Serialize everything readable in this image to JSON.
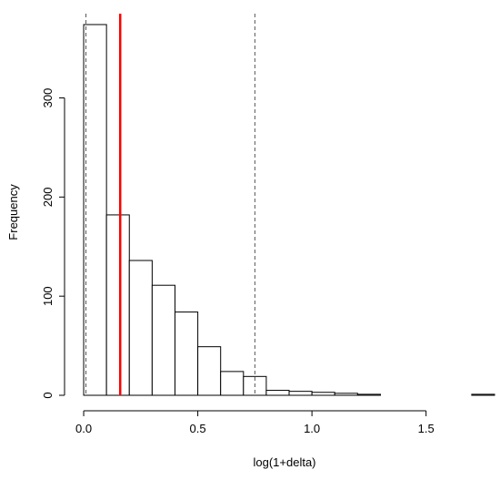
{
  "chart_data": {
    "type": "bar",
    "title": "",
    "xlabel": "log(1+delta)",
    "ylabel": "Frequency",
    "bin_width": 0.1,
    "bins": [
      {
        "x0": 0.0,
        "x1": 0.1,
        "count": 374
      },
      {
        "x0": 0.1,
        "x1": 0.2,
        "count": 182
      },
      {
        "x0": 0.2,
        "x1": 0.3,
        "count": 136
      },
      {
        "x0": 0.3,
        "x1": 0.4,
        "count": 111
      },
      {
        "x0": 0.4,
        "x1": 0.5,
        "count": 84
      },
      {
        "x0": 0.5,
        "x1": 0.6,
        "count": 49
      },
      {
        "x0": 0.6,
        "x1": 0.7,
        "count": 24
      },
      {
        "x0": 0.7,
        "x1": 0.8,
        "count": 19
      },
      {
        "x0": 0.8,
        "x1": 0.9,
        "count": 5
      },
      {
        "x0": 0.9,
        "x1": 1.0,
        "count": 4
      },
      {
        "x0": 1.0,
        "x1": 1.1,
        "count": 3
      },
      {
        "x0": 1.1,
        "x1": 1.2,
        "count": 2
      },
      {
        "x0": 1.2,
        "x1": 1.3,
        "count": 1
      },
      {
        "x0": 1.3,
        "x1": 1.4,
        "count": 0
      },
      {
        "x0": 1.4,
        "x1": 1.5,
        "count": 0
      },
      {
        "x0": 1.5,
        "x1": 1.6,
        "count": 0
      },
      {
        "x0": 1.6,
        "x1": 1.7,
        "count": 0
      },
      {
        "x0": 1.7,
        "x1": 1.8,
        "count": 1
      }
    ],
    "xlim": [
      -0.04,
      1.8
    ],
    "ylim": [
      0,
      385
    ],
    "x_ticks": [
      0.0,
      0.5,
      1.0,
      1.5
    ],
    "x_tick_labels": [
      "0.0",
      "0.5",
      "1.0",
      "1.5"
    ],
    "y_ticks": [
      0,
      100,
      200,
      300
    ],
    "y_tick_labels": [
      "0",
      "100",
      "200",
      "300"
    ],
    "reference_lines": [
      {
        "x": 0.01,
        "style": "dashed",
        "color": "#555555"
      },
      {
        "x": 0.16,
        "style": "solid",
        "color": "#ff0000"
      },
      {
        "x": 0.75,
        "style": "dashed",
        "color": "#555555"
      }
    ],
    "grid": false,
    "legend": "none"
  }
}
